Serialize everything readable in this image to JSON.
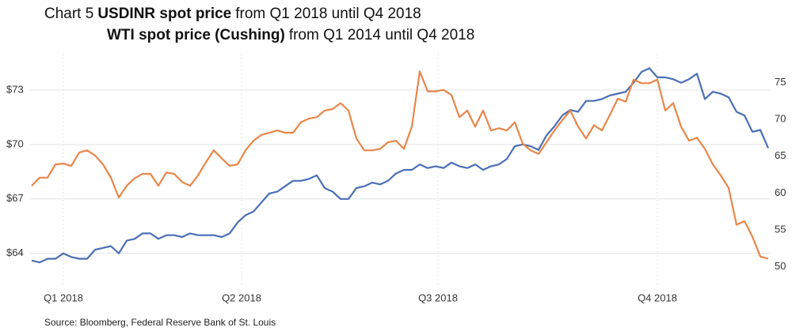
{
  "chart_data": {
    "type": "line",
    "title_lines": [
      [
        "Chart 5",
        "USDINR spot price",
        "from Q1 2018 until Q4 2018"
      ],
      [
        "WTI spot price (Cushing)",
        "from Q1 2014 until Q4 2018"
      ]
    ],
    "source": "Source: Bloomberg, Federal Reserve Bank of St. Louis",
    "xlim": [
      -0.2,
      93.2
    ],
    "xticks": [
      {
        "value": 4,
        "label": "Q1 2018"
      },
      {
        "value": 26.5,
        "label": "Q2 2018"
      },
      {
        "value": 51.3,
        "label": "Q3 2018"
      },
      {
        "value": 79,
        "label": "Q4 2018"
      }
    ],
    "ylim": [
      62.2,
      75
    ],
    "yticks": [
      {
        "value": 64,
        "label": "$64"
      },
      {
        "value": 67,
        "label": "$67"
      },
      {
        "value": 70,
        "label": "$70"
      },
      {
        "value": 73,
        "label": "$73"
      }
    ],
    "y2lim": [
      47.4,
      78.9
    ],
    "y2ticks": [
      50,
      55,
      60,
      65,
      70,
      75
    ],
    "grid": true,
    "series": [
      {
        "color": "#4a6fb5",
        "values": [
          63.6,
          63.5,
          63.7,
          63.7,
          64,
          63.8,
          63.7,
          63.7,
          64.2,
          64.3,
          64.4,
          64,
          64.7,
          64.8,
          65.1,
          65.1,
          64.8,
          65,
          65,
          64.9,
          65.1,
          65,
          65,
          65,
          64.9,
          65.1,
          65.7,
          66.1,
          66.3,
          66.8,
          67.3,
          67.4,
          67.7,
          68,
          68,
          68.1,
          68.3,
          67.6,
          67.4,
          67,
          67,
          67.6,
          67.7,
          67.9,
          67.8,
          68,
          68.4,
          68.6,
          68.6,
          68.9,
          68.7,
          68.8,
          68.7,
          69,
          68.8,
          68.7,
          68.9,
          68.6,
          68.8,
          68.9,
          69.2,
          69.9,
          70,
          69.9,
          69.7,
          70.5,
          71,
          71.6,
          71.9,
          71.8,
          72.4,
          72.4,
          72.5,
          72.7,
          72.8,
          72.9,
          73.4,
          74,
          74.2,
          73.7,
          73.7,
          73.6,
          73.4,
          73.6,
          73.9,
          72.5,
          72.9,
          72.8,
          72.6,
          71.8,
          71.6,
          70.7,
          70.8,
          69.8
        ]
      },
      {
        "color": "#e8864a",
        "axis": "y2",
        "values": [
          61,
          62.1,
          62.1,
          63.9,
          64,
          63.7,
          65.5,
          65.8,
          65.1,
          63.9,
          62.1,
          59.4,
          61,
          62,
          62.6,
          62.6,
          61,
          62.8,
          62.6,
          61.5,
          61,
          62.4,
          64.2,
          65.8,
          64.7,
          63.7,
          63.9,
          65.8,
          67.1,
          67.9,
          68.2,
          68.5,
          68.2,
          68.2,
          69.6,
          70.1,
          70.3,
          71.2,
          71.4,
          72.2,
          71.2,
          67.4,
          65.8,
          65.8,
          66,
          66.9,
          67.1,
          66,
          69,
          76.5,
          73.8,
          73.8,
          74,
          73.3,
          70.3,
          71.2,
          69,
          71.2,
          68.5,
          68.8,
          68.5,
          69.6,
          66.7,
          65.8,
          65.3,
          66.9,
          68.5,
          69.9,
          71.2,
          69,
          67.4,
          69.2,
          68.5,
          70.6,
          72.8,
          72.4,
          75.4,
          74.9,
          74.9,
          75.4,
          71.2,
          72.2,
          69,
          67.1,
          67.5,
          66,
          63.9,
          62.4,
          60.7,
          55.7,
          56.2,
          54.1,
          51.4,
          51.1
        ]
      }
    ]
  }
}
